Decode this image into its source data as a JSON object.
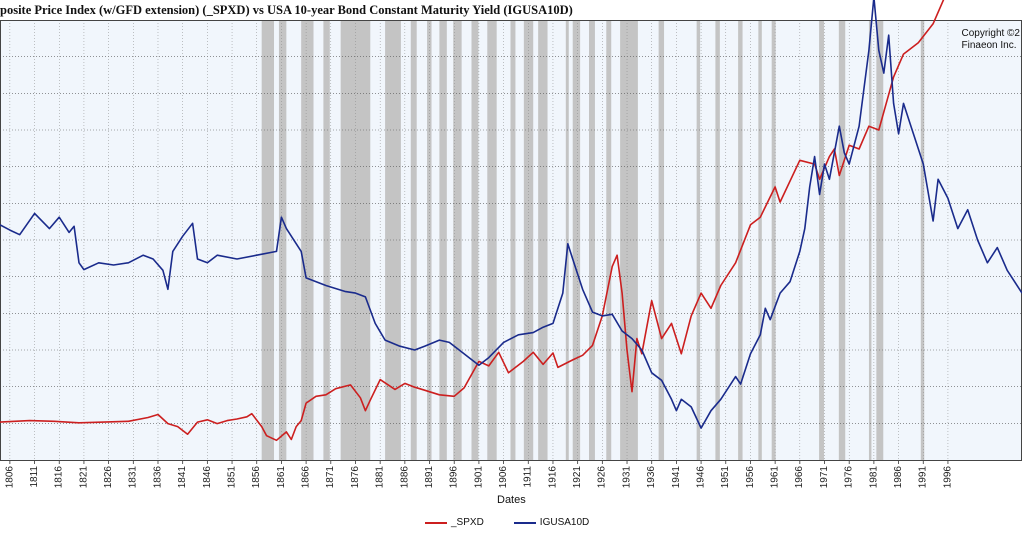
{
  "chart_data": {
    "type": "line",
    "title": "posite Price Index (w/GFD extension) (_SPXD)  vs  USA 10-year Bond Constant Maturity Yield (IGUSA10D)",
    "copyright": "Copyright ©2\nFinaeon Inc.",
    "xlabel": "Dates",
    "xlim": [
      1804,
      2011
    ],
    "tick_labels": [
      "1806",
      "1811",
      "1816",
      "1821",
      "1826",
      "1831",
      "1836",
      "1841",
      "1846",
      "1851",
      "1856",
      "1861",
      "1866",
      "1871",
      "1876",
      "1881",
      "1886",
      "1891",
      "1896",
      "1901",
      "1906",
      "1911",
      "1916",
      "1921",
      "1926",
      "1931",
      "1936",
      "1941",
      "1946",
      "1951",
      "1956",
      "1961",
      "1966",
      "1971",
      "1976",
      "1981",
      "1986",
      "1991",
      "1996"
    ],
    "recessions": [
      [
        1857,
        1859.5
      ],
      [
        1860.5,
        1862
      ],
      [
        1865,
        1867.5
      ],
      [
        1869.5,
        1870.8
      ],
      [
        1873,
        1879
      ],
      [
        1882,
        1885.2
      ],
      [
        1887.2,
        1888.4
      ],
      [
        1890.5,
        1891.4
      ],
      [
        1893,
        1894.5
      ],
      [
        1895.8,
        1897.5
      ],
      [
        1899.5,
        1900.9
      ],
      [
        1902.7,
        1904.6
      ],
      [
        1907.4,
        1908.4
      ],
      [
        1910.1,
        1912
      ],
      [
        1913,
        1914.9
      ],
      [
        1918.6,
        1919.2
      ],
      [
        1920,
        1921.5
      ],
      [
        1923.3,
        1924.5
      ],
      [
        1926.8,
        1927.8
      ],
      [
        1929.6,
        1933.2
      ],
      [
        1937.4,
        1938.5
      ],
      [
        1945.1,
        1945.8
      ],
      [
        1948.9,
        1949.8
      ],
      [
        1953.5,
        1954.4
      ],
      [
        1957.6,
        1958.3
      ],
      [
        1960.3,
        1961.1
      ],
      [
        1969.9,
        1970.9
      ],
      [
        1973.9,
        1975.2
      ],
      [
        1980,
        1980.5
      ],
      [
        1981.5,
        1982.9
      ],
      [
        1990.5,
        1991.2
      ]
    ],
    "series": [
      {
        "name": "_SPXD",
        "color": "#cc1f1f",
        "points": [
          [
            1804,
            -1.0
          ],
          [
            1810,
            -0.8
          ],
          [
            1815,
            -0.9
          ],
          [
            1820,
            -1.1
          ],
          [
            1825,
            -1.0
          ],
          [
            1830,
            -0.9
          ],
          [
            1834,
            -0.4
          ],
          [
            1836,
            0.0
          ],
          [
            1838,
            -1.2
          ],
          [
            1840,
            -1.6
          ],
          [
            1842,
            -2.6
          ],
          [
            1844,
            -1.0
          ],
          [
            1846,
            -0.7
          ],
          [
            1848,
            -1.2
          ],
          [
            1850,
            -0.8
          ],
          [
            1852,
            -0.6
          ],
          [
            1854,
            -0.3
          ],
          [
            1855,
            0.1
          ],
          [
            1857,
            -1.6
          ],
          [
            1858,
            -2.8
          ],
          [
            1860,
            -3.4
          ],
          [
            1862,
            -2.3
          ],
          [
            1863,
            -3.3
          ],
          [
            1864,
            -1.6
          ],
          [
            1865,
            -0.8
          ],
          [
            1866,
            1.5
          ],
          [
            1868,
            2.4
          ],
          [
            1870,
            2.6
          ],
          [
            1872,
            3.4
          ],
          [
            1875,
            3.9
          ],
          [
            1877,
            2.2
          ],
          [
            1878,
            0.5
          ],
          [
            1879,
            1.9
          ],
          [
            1881,
            4.6
          ],
          [
            1884,
            3.3
          ],
          [
            1886,
            4.1
          ],
          [
            1888,
            3.6
          ],
          [
            1890,
            3.2
          ],
          [
            1893,
            2.6
          ],
          [
            1896,
            2.4
          ],
          [
            1898,
            3.5
          ],
          [
            1901,
            7.0
          ],
          [
            1903,
            6.4
          ],
          [
            1905,
            8.2
          ],
          [
            1907,
            5.5
          ],
          [
            1910,
            7.0
          ],
          [
            1912,
            8.2
          ],
          [
            1914,
            6.6
          ],
          [
            1916,
            8.1
          ],
          [
            1917,
            6.2
          ],
          [
            1920,
            7.2
          ],
          [
            1922,
            7.8
          ],
          [
            1924,
            9.1
          ],
          [
            1926,
            13.0
          ],
          [
            1928,
            19.5
          ],
          [
            1929,
            21.0
          ],
          [
            1930,
            16.0
          ],
          [
            1931,
            8.5
          ],
          [
            1932,
            3.0
          ],
          [
            1933,
            10.0
          ],
          [
            1934,
            8.0
          ],
          [
            1936,
            15.0
          ],
          [
            1938,
            10.0
          ],
          [
            1940,
            12.0
          ],
          [
            1942,
            8.0
          ],
          [
            1944,
            13.0
          ],
          [
            1946,
            16.0
          ],
          [
            1948,
            14.0
          ],
          [
            1950,
            17.0
          ],
          [
            1953,
            20.0
          ],
          [
            1956,
            25.0
          ],
          [
            1958,
            26.0
          ],
          [
            1961,
            30.0
          ],
          [
            1962,
            28.0
          ],
          [
            1966,
            33.5
          ],
          [
            1969,
            33.0
          ],
          [
            1970,
            31.0
          ],
          [
            1972,
            34.0
          ],
          [
            1973,
            35.0
          ],
          [
            1974,
            31.5
          ],
          [
            1976,
            35.5
          ],
          [
            1978,
            35.0
          ],
          [
            1980,
            38.0
          ],
          [
            1982,
            37.5
          ],
          [
            1985,
            44.5
          ],
          [
            1987,
            47.5
          ],
          [
            1990,
            49.0
          ],
          [
            1993,
            51.5
          ],
          [
            1996,
            56.0
          ],
          [
            1999,
            63.5
          ],
          [
            2001,
            69.0
          ],
          [
            2002,
            73.5
          ],
          [
            2004,
            78.0
          ],
          [
            2006,
            83.0
          ],
          [
            2008,
            86.0
          ],
          [
            2011,
            92.0
          ]
        ]
      },
      {
        "name": "IGUSA10D",
        "color": "#1a2b8c",
        "points": [
          [
            1804,
            25.0
          ],
          [
            1806,
            24.3
          ],
          [
            1808,
            23.7
          ],
          [
            1811,
            26.5
          ],
          [
            1814,
            24.5
          ],
          [
            1816,
            26.0
          ],
          [
            1818,
            24.0
          ],
          [
            1819,
            24.8
          ],
          [
            1820,
            20.0
          ],
          [
            1821,
            19.1
          ],
          [
            1824,
            20.0
          ],
          [
            1827,
            19.7
          ],
          [
            1830,
            20.0
          ],
          [
            1833,
            21.0
          ],
          [
            1835,
            20.5
          ],
          [
            1837,
            19.0
          ],
          [
            1838,
            16.5
          ],
          [
            1839,
            21.5
          ],
          [
            1841,
            23.5
          ],
          [
            1843,
            25.2
          ],
          [
            1844,
            20.5
          ],
          [
            1846,
            20.0
          ],
          [
            1848,
            21.0
          ],
          [
            1852,
            20.5
          ],
          [
            1856,
            21.0
          ],
          [
            1860,
            21.5
          ],
          [
            1861,
            26.0
          ],
          [
            1862,
            24.5
          ],
          [
            1865,
            21.5
          ],
          [
            1866,
            18.0
          ],
          [
            1870,
            17.0
          ],
          [
            1874,
            16.2
          ],
          [
            1876,
            16.0
          ],
          [
            1878,
            15.5
          ],
          [
            1880,
            12.0
          ],
          [
            1882,
            9.8
          ],
          [
            1885,
            9.0
          ],
          [
            1888,
            8.5
          ],
          [
            1890,
            9.0
          ],
          [
            1893,
            9.8
          ],
          [
            1895,
            9.5
          ],
          [
            1897,
            8.5
          ],
          [
            1899,
            7.5
          ],
          [
            1901,
            6.5
          ],
          [
            1903,
            7.5
          ],
          [
            1906,
            9.5
          ],
          [
            1909,
            10.5
          ],
          [
            1912,
            10.8
          ],
          [
            1914,
            11.5
          ],
          [
            1916,
            12.0
          ],
          [
            1918,
            16.0
          ],
          [
            1919,
            22.5
          ],
          [
            1920,
            20.5
          ],
          [
            1922,
            16.5
          ],
          [
            1924,
            13.5
          ],
          [
            1926,
            13.0
          ],
          [
            1928,
            13.2
          ],
          [
            1930,
            11.0
          ],
          [
            1932,
            10.0
          ],
          [
            1934,
            8.5
          ],
          [
            1936,
            5.5
          ],
          [
            1938,
            4.5
          ],
          [
            1940,
            2.0
          ],
          [
            1941,
            0.5
          ],
          [
            1942,
            2.0
          ],
          [
            1944,
            1.0
          ],
          [
            1946,
            -1.8
          ],
          [
            1948,
            0.5
          ],
          [
            1950,
            2.0
          ],
          [
            1953,
            5.0
          ],
          [
            1954,
            4.0
          ],
          [
            1956,
            8.0
          ],
          [
            1958,
            10.5
          ],
          [
            1959,
            14.0
          ],
          [
            1960,
            12.5
          ],
          [
            1962,
            16.0
          ],
          [
            1964,
            17.5
          ],
          [
            1966,
            21.5
          ],
          [
            1967,
            24.5
          ],
          [
            1968,
            30.0
          ],
          [
            1969,
            34.0
          ],
          [
            1970,
            29.0
          ],
          [
            1971,
            33.0
          ],
          [
            1972,
            31.0
          ],
          [
            1974,
            38.0
          ],
          [
            1975,
            34.5
          ],
          [
            1976,
            33.0
          ],
          [
            1978,
            38.0
          ],
          [
            1980,
            48.0
          ],
          [
            1981,
            55.0
          ],
          [
            1982,
            48.0
          ],
          [
            1983,
            45.0
          ],
          [
            1984,
            50.0
          ],
          [
            1985,
            41.0
          ],
          [
            1986,
            37.0
          ],
          [
            1987,
            41.0
          ],
          [
            1989,
            37.0
          ],
          [
            1991,
            33.0
          ],
          [
            1993,
            25.5
          ],
          [
            1994,
            31.0
          ],
          [
            1996,
            28.5
          ],
          [
            1998,
            24.5
          ],
          [
            2000,
            27.0
          ],
          [
            2002,
            23.0
          ],
          [
            2004,
            20.0
          ],
          [
            2006,
            22.0
          ],
          [
            2008,
            19.0
          ],
          [
            2011,
            16.0
          ]
        ]
      }
    ]
  },
  "legend": [
    {
      "label": "_SPXD",
      "color": "#cc1f1f"
    },
    {
      "label": "IGUSA10D",
      "color": "#1a2b8c"
    }
  ]
}
